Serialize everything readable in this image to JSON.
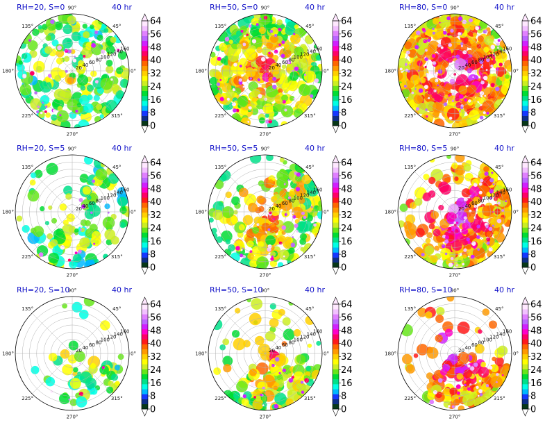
{
  "chart_data": {
    "type": "polar-filled-contour-grid",
    "common": {
      "valid_time_label": "40 hr",
      "theta_tick_labels": [
        "0°",
        "45°",
        "90°",
        "135°",
        "180°",
        "225°",
        "270°",
        "315°"
      ],
      "radial_tick_labels": [
        "20",
        "40",
        "60",
        "80",
        "100",
        "120",
        "140",
        "160"
      ],
      "radial_range": [
        0,
        160
      ],
      "colorbar_ticks": [
        "0",
        "8",
        "16",
        "24",
        "32",
        "40",
        "48",
        "56",
        "64"
      ],
      "colorbar_range": [
        0,
        64
      ],
      "colorbar_extend": "both"
    },
    "panels": [
      {
        "title": "RH=20, S=0",
        "rh": 20,
        "shear": 0
      },
      {
        "title": "RH=50, S=0",
        "rh": 50,
        "shear": 0
      },
      {
        "title": "RH=80, S=0",
        "rh": 80,
        "shear": 0
      },
      {
        "title": "RH=20, S=5",
        "rh": 20,
        "shear": 5
      },
      {
        "title": "RH=50, S=5",
        "rh": 50,
        "shear": 5
      },
      {
        "title": "RH=80, S=5",
        "rh": 80,
        "shear": 5
      },
      {
        "title": "RH=20, S=10",
        "rh": 20,
        "shear": 10
      },
      {
        "title": "RH=50, S=10",
        "rh": 50,
        "shear": 10
      },
      {
        "title": "RH=80, S=10",
        "rh": 80,
        "shear": 10
      }
    ],
    "colormap": [
      "#083818",
      "#0f2f86",
      "#1538ff",
      "#00b8ff",
      "#00ffe4",
      "#00e08a",
      "#00dd33",
      "#66e61a",
      "#ccee22",
      "#ffff00",
      "#ffd000",
      "#ff9a00",
      "#ff6600",
      "#ff1a1a",
      "#ff0066",
      "#ff00c8",
      "#d020ff",
      "#bb66ff",
      "#e080ff",
      "#f2c0ff",
      "#ffe8ff"
    ]
  }
}
